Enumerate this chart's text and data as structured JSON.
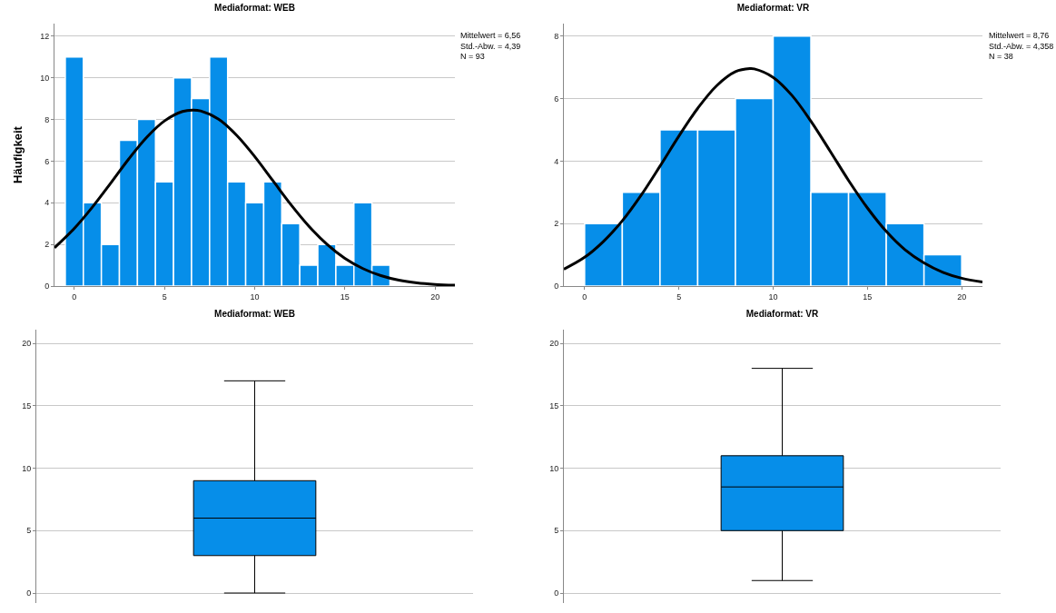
{
  "chart_data": [
    {
      "type": "histogram",
      "title": "Mediaformat: WEB",
      "ylabel": "Häufigkeit",
      "color": "#068ee9",
      "bins": [
        -0.5,
        0.5,
        1.5,
        2.5,
        3.5,
        4.5,
        5.5,
        6.5,
        7.5,
        8.5,
        9.5,
        10.5,
        11.5,
        12.5,
        13.5,
        14.5,
        15.5,
        16.5,
        17.5
      ],
      "values": [
        11,
        4,
        2,
        7,
        8,
        5,
        10,
        9,
        11,
        5,
        4,
        5,
        3,
        1,
        2,
        1,
        4,
        1
      ],
      "series": [
        {
          "type": "line",
          "color": "#000000",
          "x": [
            -1.1,
            0,
            1,
            2,
            3,
            4,
            5,
            6,
            6.56,
            7,
            8,
            9,
            10,
            11,
            12,
            13,
            14,
            15,
            16,
            17,
            18,
            19,
            20,
            21.1
          ],
          "values": [
            1.84,
            2.77,
            3.79,
            4.92,
            6.08,
            7.13,
            7.93,
            8.38,
            8.45,
            8.41,
            8.01,
            7.24,
            6.22,
            5.07,
            3.92,
            2.88,
            2.01,
            1.33,
            0.84,
            0.5,
            0.28,
            0.15,
            0.08,
            0.04
          ]
        }
      ],
      "xlim": [
        -1.1,
        21.1
      ],
      "xticks": [
        0,
        5,
        10,
        15,
        20
      ],
      "ylim": [
        0,
        12.6
      ],
      "yticks": [
        0,
        2,
        4,
        6,
        8,
        10,
        12
      ],
      "grid": "y",
      "annotations": [
        "Mittelwert = 6,56\nStd.-Abw. = 4,39\nN = 93"
      ]
    },
    {
      "type": "histogram",
      "title": "Mediaformat: VR",
      "color": "#068ee9",
      "bins": [
        0,
        2,
        4,
        6,
        8,
        10,
        12,
        14,
        16,
        18,
        20
      ],
      "values": [
        2,
        3,
        5,
        5,
        6,
        8,
        3,
        3,
        2,
        1
      ],
      "series": [
        {
          "type": "line",
          "color": "#000000",
          "x": [
            -1.1,
            0,
            1,
            2,
            3,
            4,
            5,
            6,
            7,
            8,
            8.76,
            9,
            10,
            11,
            12,
            13,
            14,
            15,
            16,
            17,
            18,
            19,
            20,
            21.1
          ],
          "values": [
            0.54,
            0.92,
            1.43,
            2.09,
            2.91,
            3.84,
            4.8,
            5.69,
            6.41,
            6.86,
            6.96,
            6.95,
            6.68,
            6.1,
            5.28,
            4.34,
            3.38,
            2.5,
            1.75,
            1.16,
            0.74,
            0.44,
            0.25,
            0.13
          ]
        }
      ],
      "xlim": [
        -1.1,
        21.1
      ],
      "xticks": [
        0,
        5,
        10,
        15,
        20
      ],
      "ylim": [
        0,
        8.4
      ],
      "yticks": [
        0,
        2,
        4,
        6,
        8
      ],
      "grid": "y",
      "annotations": [
        "Mittelwert = 8,76\nStd.-Abw. = 4,358\nN = 38"
      ]
    },
    {
      "type": "box",
      "title": "Mediaformat: WEB",
      "color": "#068ee9",
      "categories": [
        null
      ],
      "boxes": [
        {
          "low": 0,
          "q1": 3,
          "median": 6,
          "q3": 9,
          "high": 17
        }
      ],
      "ylim": [
        -0.8,
        21.1
      ],
      "yticks": [
        0,
        5,
        10,
        15,
        20
      ],
      "grid": "y",
      "tick_labels": "y"
    },
    {
      "type": "box",
      "title": "Mediaformat: VR",
      "color": "#068ee9",
      "categories": [
        null
      ],
      "boxes": [
        {
          "low": 1,
          "q1": 5,
          "median": 8.5,
          "q3": 11,
          "high": 18
        }
      ],
      "ylim": [
        -0.8,
        21.1
      ],
      "yticks": [
        0,
        5,
        10,
        15,
        20
      ],
      "grid": "y",
      "tick_labels": "y"
    }
  ]
}
